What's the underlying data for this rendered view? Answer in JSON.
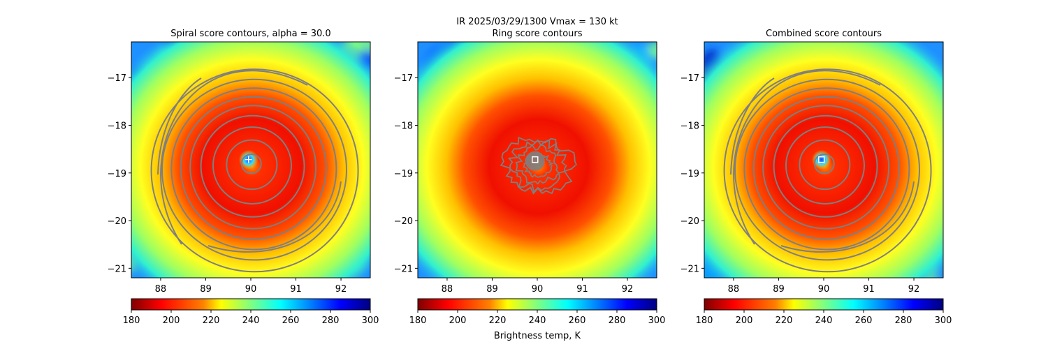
{
  "figure": {
    "suptitle": "IR  2025/03/29/1300    Vmax = 130 kt",
    "colorbar_label": "Brightness temp, K"
  },
  "colors": {
    "contour": "#7f7f7f",
    "marker": "#ffffff",
    "jet": [
      "#800000",
      "#ff0000",
      "#ff8000",
      "#ffff00",
      "#80ff80",
      "#00ffff",
      "#0080ff",
      "#0000ff",
      "#000080"
    ]
  },
  "chart_data": [
    {
      "type": "heatmap",
      "title": "Spiral score contours, alpha = 30.0",
      "xlim": [
        87.35,
        92.65
      ],
      "ylim": [
        -21.2,
        -16.25
      ],
      "xticks": [
        "88",
        "89",
        "90",
        "91",
        "92"
      ],
      "yticks": [
        "−17",
        "−18",
        "−19",
        "−20",
        "−21"
      ],
      "center": {
        "lon": 89.95,
        "lat": -18.72
      },
      "colorbar": {
        "range": [
          180,
          300
        ],
        "ticks": [
          "180",
          "200",
          "220",
          "240",
          "260",
          "280",
          "300"
        ]
      },
      "contours": "spiral"
    },
    {
      "type": "heatmap",
      "title": "Ring score contours",
      "xlim": [
        87.35,
        92.65
      ],
      "ylim": [
        -21.2,
        -16.25
      ],
      "xticks": [
        "88",
        "89",
        "90",
        "91",
        "92"
      ],
      "yticks": [
        "−17",
        "−18",
        "−19",
        "−20",
        "−21"
      ],
      "center": {
        "lon": 89.95,
        "lat": -18.72
      },
      "colorbar": {
        "range": [
          180,
          300
        ],
        "ticks": [
          "180",
          "200",
          "220",
          "240",
          "260",
          "280",
          "300"
        ]
      },
      "contours": "ring"
    },
    {
      "type": "heatmap",
      "title": "Combined score contours",
      "xlim": [
        87.35,
        92.65
      ],
      "ylim": [
        -21.2,
        -16.25
      ],
      "xticks": [
        "88",
        "89",
        "90",
        "91",
        "92"
      ],
      "yticks": [
        "−17",
        "−18",
        "−19",
        "−20",
        "−21"
      ],
      "center": {
        "lon": 89.95,
        "lat": -18.72
      },
      "colorbar": {
        "range": [
          180,
          300
        ],
        "ticks": [
          "180",
          "200",
          "220",
          "240",
          "260",
          "280",
          "300"
        ]
      },
      "contours": "combined"
    }
  ]
}
